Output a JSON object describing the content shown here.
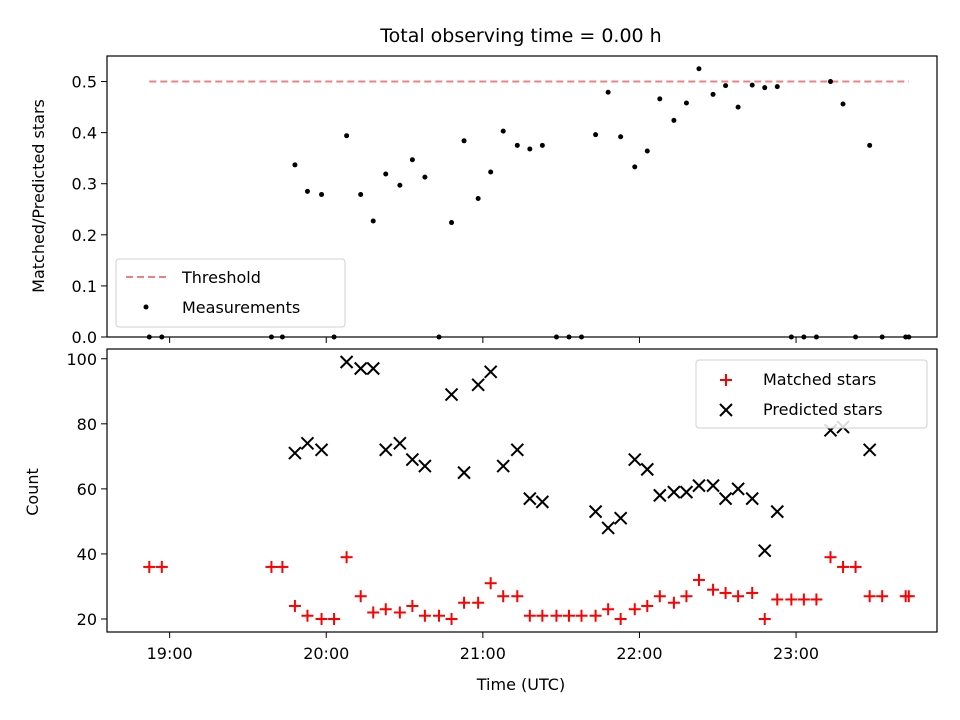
{
  "chart_data": [
    {
      "type": "scatter",
      "title": "Total observing time = 0.00 h",
      "xlabel": "",
      "ylabel": "Matched/Predicted stars",
      "ylim": [
        0,
        0.55
      ],
      "yticks": [
        "0.0",
        "0.1",
        "0.2",
        "0.3",
        "0.4",
        "0.5"
      ],
      "legend_position": "lower-left",
      "threshold": {
        "name": "Threshold",
        "value": 0.5,
        "x_start": 18.87,
        "x_end": 23.72,
        "color": "#f08080",
        "style": "dashed"
      },
      "series": [
        {
          "name": "Measurements",
          "marker": "dot",
          "color": "#000000",
          "points": [
            [
              18.87,
              0.0
            ],
            [
              18.95,
              0.0
            ],
            [
              19.65,
              0.0
            ],
            [
              19.72,
              0.0
            ],
            [
              19.8,
              0.337
            ],
            [
              19.88,
              0.285
            ],
            [
              19.97,
              0.279
            ],
            [
              20.05,
              0.0
            ],
            [
              20.13,
              0.394
            ],
            [
              20.22,
              0.279
            ],
            [
              20.3,
              0.227
            ],
            [
              20.38,
              0.319
            ],
            [
              20.47,
              0.297
            ],
            [
              20.55,
              0.347
            ],
            [
              20.63,
              0.313
            ],
            [
              20.72,
              0.0
            ],
            [
              20.8,
              0.224
            ],
            [
              20.88,
              0.384
            ],
            [
              20.97,
              0.271
            ],
            [
              21.05,
              0.323
            ],
            [
              21.13,
              0.403
            ],
            [
              21.22,
              0.375
            ],
            [
              21.3,
              0.368
            ],
            [
              21.38,
              0.375
            ],
            [
              21.47,
              0.0
            ],
            [
              21.55,
              0.0
            ],
            [
              21.63,
              0.0
            ],
            [
              21.72,
              0.396
            ],
            [
              21.8,
              0.479
            ],
            [
              21.88,
              0.392
            ],
            [
              21.97,
              0.333
            ],
            [
              22.05,
              0.364
            ],
            [
              22.13,
              0.466
            ],
            [
              22.22,
              0.424
            ],
            [
              22.3,
              0.458
            ],
            [
              22.38,
              0.525
            ],
            [
              22.47,
              0.475
            ],
            [
              22.55,
              0.492
            ],
            [
              22.63,
              0.45
            ],
            [
              22.72,
              0.493
            ],
            [
              22.8,
              0.488
            ],
            [
              22.88,
              0.49
            ],
            [
              22.97,
              0.0
            ],
            [
              23.05,
              0.0
            ],
            [
              23.13,
              0.0
            ],
            [
              23.22,
              0.5
            ],
            [
              23.3,
              0.456
            ],
            [
              23.38,
              0.0
            ],
            [
              23.47,
              0.375
            ],
            [
              23.55,
              0.0
            ],
            [
              23.7,
              0.0
            ],
            [
              23.72,
              0.0
            ]
          ]
        }
      ]
    },
    {
      "type": "scatter",
      "title": "",
      "xlabel": "Time (UTC)",
      "ylabel": "Count",
      "ylim": [
        16,
        103
      ],
      "xlim": [
        18.6,
        23.9
      ],
      "yticks": [
        "20",
        "40",
        "60",
        "80",
        "100"
      ],
      "xticks": [
        "19:00",
        "20:00",
        "21:00",
        "22:00",
        "23:00"
      ],
      "legend_position": "top-right",
      "series": [
        {
          "name": "Matched stars",
          "marker": "plus",
          "color": "#ff0000",
          "points": [
            [
              18.87,
              36
            ],
            [
              18.95,
              36
            ],
            [
              19.65,
              36
            ],
            [
              19.72,
              36
            ],
            [
              19.8,
              24
            ],
            [
              19.88,
              21
            ],
            [
              19.97,
              20
            ],
            [
              20.05,
              20
            ],
            [
              20.13,
              39
            ],
            [
              20.22,
              27
            ],
            [
              20.3,
              22
            ],
            [
              20.38,
              23
            ],
            [
              20.47,
              22
            ],
            [
              20.55,
              24
            ],
            [
              20.63,
              21
            ],
            [
              20.72,
              21
            ],
            [
              20.8,
              20
            ],
            [
              20.88,
              25
            ],
            [
              20.97,
              25
            ],
            [
              21.05,
              31
            ],
            [
              21.13,
              27
            ],
            [
              21.22,
              27
            ],
            [
              21.3,
              21
            ],
            [
              21.38,
              21
            ],
            [
              21.47,
              21
            ],
            [
              21.55,
              21
            ],
            [
              21.63,
              21
            ],
            [
              21.72,
              21
            ],
            [
              21.8,
              23
            ],
            [
              21.88,
              20
            ],
            [
              21.97,
              23
            ],
            [
              22.05,
              24
            ],
            [
              22.13,
              27
            ],
            [
              22.22,
              25
            ],
            [
              22.3,
              27
            ],
            [
              22.38,
              32
            ],
            [
              22.47,
              29
            ],
            [
              22.55,
              28
            ],
            [
              22.63,
              27
            ],
            [
              22.72,
              28
            ],
            [
              22.8,
              20
            ],
            [
              22.88,
              26
            ],
            [
              22.97,
              26
            ],
            [
              23.05,
              26
            ],
            [
              23.13,
              26
            ],
            [
              23.22,
              39
            ],
            [
              23.3,
              36
            ],
            [
              23.38,
              36
            ],
            [
              23.47,
              27
            ],
            [
              23.55,
              27
            ],
            [
              23.7,
              27
            ],
            [
              23.72,
              27
            ]
          ]
        },
        {
          "name": "Predicted stars",
          "marker": "x",
          "color": "#000000",
          "points": [
            [
              19.8,
              71
            ],
            [
              19.88,
              74
            ],
            [
              19.97,
              72
            ],
            [
              20.13,
              99
            ],
            [
              20.22,
              97
            ],
            [
              20.3,
              97
            ],
            [
              20.38,
              72
            ],
            [
              20.47,
              74
            ],
            [
              20.55,
              69
            ],
            [
              20.63,
              67
            ],
            [
              20.8,
              89
            ],
            [
              20.88,
              65
            ],
            [
              20.97,
              92
            ],
            [
              21.05,
              96
            ],
            [
              21.13,
              67
            ],
            [
              21.22,
              72
            ],
            [
              21.3,
              57
            ],
            [
              21.38,
              56
            ],
            [
              21.72,
              53
            ],
            [
              21.8,
              48
            ],
            [
              21.88,
              51
            ],
            [
              21.97,
              69
            ],
            [
              22.05,
              66
            ],
            [
              22.13,
              58
            ],
            [
              22.22,
              59
            ],
            [
              22.3,
              59
            ],
            [
              22.38,
              61
            ],
            [
              22.47,
              61
            ],
            [
              22.55,
              57
            ],
            [
              22.63,
              60
            ],
            [
              22.72,
              57
            ],
            [
              22.8,
              41
            ],
            [
              22.88,
              53
            ],
            [
              23.22,
              78
            ],
            [
              23.3,
              79
            ],
            [
              23.47,
              72
            ]
          ]
        }
      ]
    }
  ]
}
